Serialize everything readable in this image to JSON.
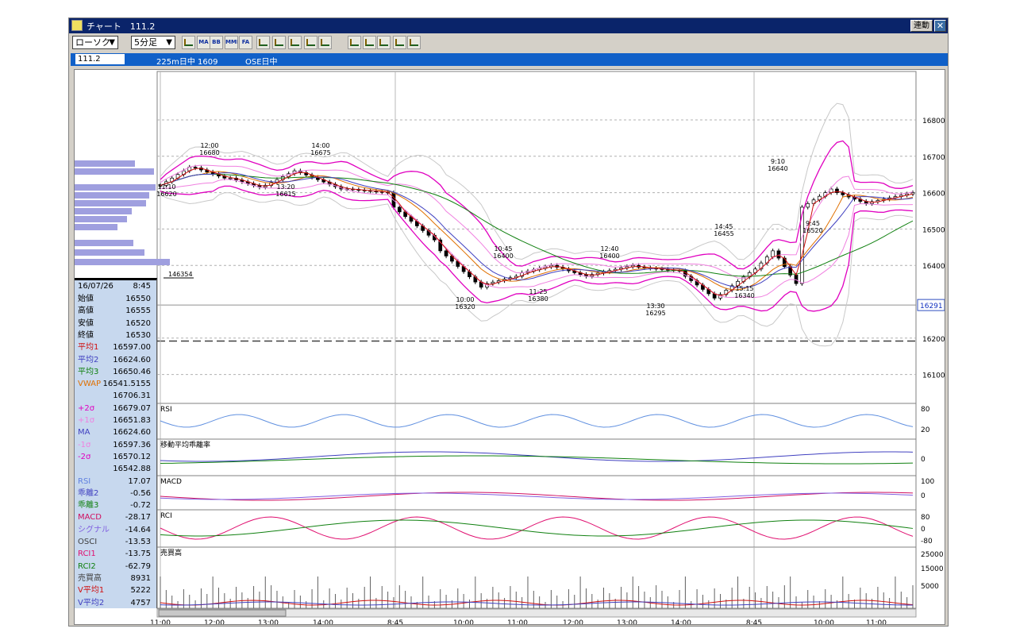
{
  "window": {
    "title": "チャート　111.2",
    "link_button": "連動",
    "close_glyph": "✕"
  },
  "toolbar": {
    "chart_type": "ローソク",
    "timeframe": "5分足",
    "icons": [
      "crosshair-icon",
      "ma-icon",
      "bb-icon",
      "mme-icon",
      "fa-icon",
      "line-icon",
      "fib-icon",
      "cross-icon",
      "zoom-icon",
      "table-icon",
      "pen-icon",
      "cursor-icon",
      "eraser-icon",
      "search-icon",
      "no-draw-icon"
    ],
    "icon_labels": [
      "",
      "MA",
      "BB",
      "MME",
      "FA",
      "",
      "",
      "",
      "",
      "",
      "",
      "",
      "",
      "",
      ""
    ]
  },
  "infobar": {
    "code": "111.2",
    "instrument": "225m日中 1609",
    "session": "OSE日中"
  },
  "price_axis": {
    "ticks": [
      "16800",
      "16700",
      "16600",
      "16500",
      "16400",
      "16200",
      "16100"
    ],
    "current_price_tag": "16291"
  },
  "annotations": [
    {
      "time": "12:00",
      "price": "16680"
    },
    {
      "time": "11:10",
      "price": "16620"
    },
    {
      "time": "14:00",
      "price": "16675"
    },
    {
      "time": "13:20",
      "price": "16615"
    },
    {
      "time": "10:45",
      "price": "16400"
    },
    {
      "time": "10:00",
      "price": "16320"
    },
    {
      "time": "11:25",
      "price": "16380"
    },
    {
      "time": "12:40",
      "price": "16400"
    },
    {
      "time": "13:30",
      "price": "16295"
    },
    {
      "time": "14:45",
      "price": "16455"
    },
    {
      "time": "15:15",
      "price": "16340"
    },
    {
      "time": "9:10",
      "price": "16640"
    },
    {
      "time": "9:45",
      "price": "16520"
    }
  ],
  "volume_profile_marker": "146354",
  "subpanels": {
    "rsi": {
      "title": "RSI",
      "ticks": [
        "80",
        "20"
      ]
    },
    "kairi": {
      "title": "移動平均乖離率",
      "ticks": [
        "0"
      ]
    },
    "macd": {
      "title": "MACD",
      "ticks": [
        "100",
        "0"
      ]
    },
    "rci": {
      "title": "RCI",
      "ticks": [
        "80",
        "0",
        "-80"
      ]
    },
    "volume": {
      "title": "売買高",
      "ticks": [
        "25000",
        "15000",
        "5000"
      ]
    }
  },
  "x_axis": {
    "ticks": [
      "11:00",
      "12:00",
      "13:00",
      "14:00",
      "8:45",
      "10:00",
      "11:00",
      "12:00",
      "13:00",
      "14:00",
      "8:45",
      "10:00",
      "11:00"
    ]
  },
  "data_panel": {
    "date": "16/07/26",
    "time": "8:45",
    "rows": [
      {
        "label": "始値",
        "value": "16550",
        "color": "#000000"
      },
      {
        "label": "高値",
        "value": "16555",
        "color": "#000000"
      },
      {
        "label": "安値",
        "value": "16520",
        "color": "#000000"
      },
      {
        "label": "終値",
        "value": "16530",
        "color": "#000000"
      },
      {
        "label": "平均1",
        "value": "16597.00",
        "color": "#d01010"
      },
      {
        "label": "平均2",
        "value": "16624.60",
        "color": "#4040c0"
      },
      {
        "label": "平均3",
        "value": "16650.46",
        "color": "#108010"
      },
      {
        "label": "VWAP",
        "value": "16541.5155",
        "color": "#e07000"
      },
      {
        "label": "",
        "value": "16706.31",
        "color": "#000000"
      },
      {
        "label": "+2σ",
        "value": "16679.07",
        "color": "#e000c0"
      },
      {
        "label": "+1σ",
        "value": "16651.83",
        "color": "#f080e0"
      },
      {
        "label": "MA",
        "value": "16624.60",
        "color": "#4040c0"
      },
      {
        "label": "-1σ",
        "value": "16597.36",
        "color": "#f080e0"
      },
      {
        "label": "-2σ",
        "value": "16570.12",
        "color": "#e000c0"
      },
      {
        "label": "",
        "value": "16542.88",
        "color": "#000000"
      },
      {
        "label": "RSI",
        "value": "17.07",
        "color": "#6080e0"
      },
      {
        "label": "乖離2",
        "value": "-0.56",
        "color": "#4040c0"
      },
      {
        "label": "乖離3",
        "value": "-0.72",
        "color": "#108010"
      },
      {
        "label": "MACD",
        "value": "-28.17",
        "color": "#d01060"
      },
      {
        "label": "シグナル",
        "value": "-14.64",
        "color": "#8060e0"
      },
      {
        "label": "OSCI",
        "value": "-13.53",
        "color": "#404040"
      },
      {
        "label": "RCI1",
        "value": "-13.75",
        "color": "#e01070"
      },
      {
        "label": "RCI2",
        "value": "-62.79",
        "color": "#108010"
      },
      {
        "label": "売買高",
        "value": "8931",
        "color": "#404040"
      },
      {
        "label": "V平均1",
        "value": "5222",
        "color": "#d01010"
      },
      {
        "label": "V平均2",
        "value": "4757",
        "color": "#4040c0"
      }
    ]
  },
  "colors": {
    "title_bar": "#0a246a",
    "info_bar": "#1060c8",
    "data_panel_bg": "#c7d8ee",
    "ma1": "#d01010",
    "ma2": "#4040c0",
    "ma3": "#108010",
    "vwap": "#e07000",
    "bb2": "#e000c0",
    "bb1": "#f080e0",
    "bb3": "#c8c8c8"
  }
}
